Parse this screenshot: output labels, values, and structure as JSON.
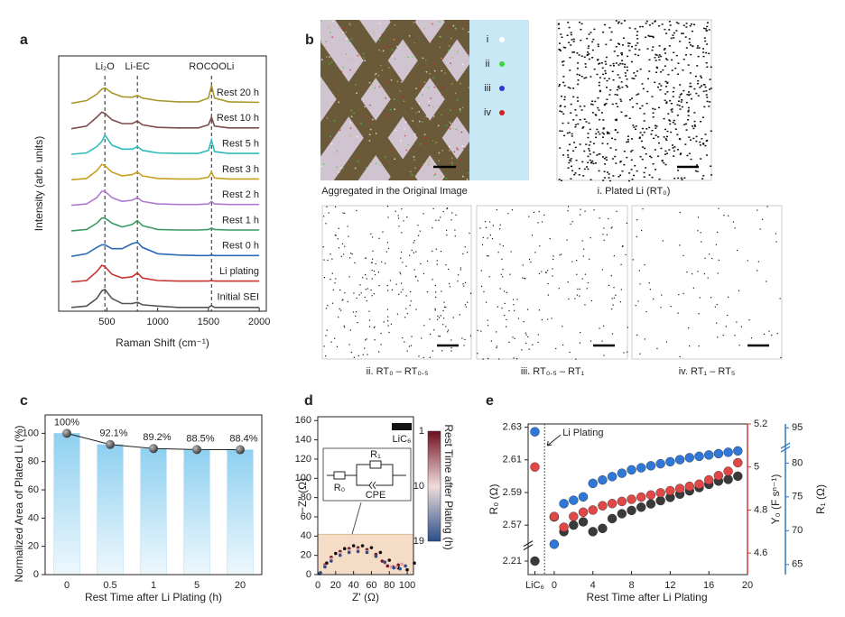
{
  "chart_data": [
    {
      "type": "line",
      "panel_label": "a",
      "xlabel": "Raman Shift (cm⁻¹)",
      "ylabel": "Intensity (arb. units)",
      "x": [
        150,
        300,
        400,
        450,
        480,
        550,
        650,
        750,
        800,
        850,
        1000,
        1200,
        1400,
        1500,
        1530,
        1560,
        1700,
        2000
      ],
      "xlim": [
        25,
        2070
      ],
      "xticks": [
        500,
        1000,
        1500,
        2000
      ],
      "ylim": [
        0,
        10
      ],
      "annotations": [
        {
          "text": "Li₂O",
          "x": 480
        },
        {
          "text": "Li-EC",
          "x": 800
        },
        {
          "text": "ROCOOLi",
          "x": 1530
        }
      ],
      "series": [
        {
          "name": "Rest 20 h",
          "color": "#a8982a",
          "values": [
            0.15,
            0.25,
            0.5,
            0.7,
            0.75,
            0.55,
            0.4,
            0.38,
            0.45,
            0.35,
            0.25,
            0.2,
            0.2,
            0.35,
            0.85,
            0.35,
            0.2,
            0.18
          ]
        },
        {
          "name": "Rest 10 h",
          "color": "#7a4c4a",
          "values": [
            0.15,
            0.25,
            0.6,
            0.8,
            0.75,
            0.5,
            0.35,
            0.35,
            0.45,
            0.3,
            0.2,
            0.18,
            0.18,
            0.3,
            0.6,
            0.25,
            0.18,
            0.18
          ]
        },
        {
          "name": "Rest 5 h",
          "color": "#2cbcbc",
          "values": [
            0.15,
            0.2,
            0.45,
            0.65,
            0.9,
            0.5,
            0.35,
            0.35,
            0.45,
            0.3,
            0.2,
            0.18,
            0.18,
            0.3,
            0.7,
            0.25,
            0.18,
            0.18
          ]
        },
        {
          "name": "Rest 3 h",
          "color": "#c9a022",
          "values": [
            0.15,
            0.2,
            0.5,
            0.75,
            0.7,
            0.45,
            0.3,
            0.35,
            0.45,
            0.3,
            0.2,
            0.18,
            0.18,
            0.25,
            0.45,
            0.22,
            0.18,
            0.18
          ]
        },
        {
          "name": "Rest 2 h",
          "color": "#b07ad0",
          "values": [
            0.15,
            0.2,
            0.45,
            0.7,
            0.7,
            0.45,
            0.3,
            0.35,
            0.45,
            0.3,
            0.2,
            0.18,
            0.18,
            0.2,
            0.3,
            0.2,
            0.18,
            0.18
          ]
        },
        {
          "name": "Rest 1 h",
          "color": "#3a9a62",
          "values": [
            0.15,
            0.2,
            0.45,
            0.65,
            0.65,
            0.45,
            0.3,
            0.4,
            0.55,
            0.35,
            0.2,
            0.18,
            0.18,
            0.2,
            0.25,
            0.2,
            0.18,
            0.18
          ]
        },
        {
          "name": "Rest 0 h",
          "color": "#2a6ab8",
          "values": [
            0.15,
            0.25,
            0.5,
            0.6,
            0.6,
            0.45,
            0.45,
            0.65,
            0.7,
            0.5,
            0.25,
            0.2,
            0.18,
            0.18,
            0.2,
            0.18,
            0.18,
            0.18
          ]
        },
        {
          "name": "Li plating",
          "color": "#c83232",
          "values": [
            0.15,
            0.2,
            0.55,
            0.8,
            0.75,
            0.45,
            0.3,
            0.35,
            0.5,
            0.3,
            0.2,
            0.18,
            0.18,
            0.18,
            0.2,
            0.18,
            0.18,
            0.18
          ]
        },
        {
          "name": "Initial SEI",
          "color": "#555555",
          "values": [
            0.15,
            0.2,
            0.5,
            0.8,
            0.85,
            0.5,
            0.3,
            0.3,
            0.35,
            0.25,
            0.2,
            0.15,
            0.15,
            0.15,
            0.22,
            0.15,
            0.15,
            0.15
          ]
        }
      ]
    },
    {
      "type": "bar",
      "panel_label": "c",
      "xlabel": "Rest Time after Li Plating (h)",
      "ylabel": "Normalized Area of Plated Li (%)",
      "categories": [
        "0",
        "0.5",
        "1",
        "5",
        "20"
      ],
      "values": [
        100,
        92.1,
        89.2,
        88.5,
        88.4
      ],
      "value_labels": [
        "100%",
        "92.1%",
        "89.2%",
        "88.5%",
        "88.4%"
      ],
      "color": "#a9dcf3",
      "ylim": [
        0,
        113
      ],
      "yticks": [
        0,
        20,
        40,
        60,
        80,
        100
      ]
    },
    {
      "type": "scatter",
      "panel_label": "d",
      "xlabel": "Z' (Ω)",
      "ylabel": "−Z'' (Ω)",
      "xlim": [
        0,
        107
      ],
      "xticks": [
        0,
        20,
        40,
        60,
        80,
        100
      ],
      "ylim": [
        0,
        164
      ],
      "yticks": [
        0,
        20,
        40,
        60,
        80,
        100,
        120,
        140,
        160
      ],
      "series": [
        {
          "color": "#111111",
          "x": [
            2,
            10,
            20,
            30,
            40,
            50,
            60,
            70,
            80,
            90,
            100,
            108
          ],
          "values": [
            1,
            12,
            22,
            27,
            30,
            30,
            28,
            23,
            15,
            7,
            5,
            12
          ]
        },
        {
          "color": "#7a1426",
          "x": [
            3,
            8,
            15,
            25,
            35,
            45,
            55,
            65,
            72,
            78,
            84,
            90
          ],
          "values": [
            2,
            10,
            18,
            24,
            27,
            28,
            26,
            21,
            14,
            9,
            8,
            10
          ]
        },
        {
          "color": "#d9a0a8",
          "x": [
            3,
            8,
            15,
            25,
            35,
            45,
            55,
            65,
            75,
            82,
            88,
            94
          ],
          "values": [
            2,
            9,
            16,
            22,
            25,
            26,
            24,
            19,
            12,
            8,
            8,
            11
          ]
        },
        {
          "color": "#2a4e8a",
          "x": [
            3,
            8,
            15,
            25,
            35,
            45,
            55,
            65,
            75,
            85,
            92,
            98
          ],
          "values": [
            2,
            8,
            14,
            20,
            23,
            24,
            23,
            19,
            13,
            7,
            6,
            9
          ]
        }
      ],
      "legend": {
        "label": "LiC₆",
        "color": "#111111"
      },
      "colorbar": {
        "title": "Rest Time after Plating (h)",
        "lim": [
          1,
          19
        ],
        "ticks": [
          1,
          10,
          19
        ],
        "colors": [
          "#6e0f1e",
          "#f0dcdc",
          "#2a4e8a"
        ]
      },
      "inset": {
        "labels": [
          "R₀",
          "R₁",
          "CPE"
        ]
      }
    },
    {
      "type": "multi_axis_scatter",
      "panel_label": "e",
      "xlabel": "Rest Time after Li Plating",
      "x": [
        -2,
        0,
        1,
        2,
        3,
        4,
        5,
        6,
        7,
        8,
        9,
        10,
        11,
        12,
        13,
        14,
        15,
        16,
        17,
        18,
        19
      ],
      "xlim": [
        -2.7,
        20
      ],
      "xticks": [
        {
          "value": -2,
          "label": "LiC₆"
        },
        0,
        4,
        8,
        12,
        16,
        20
      ],
      "ylabel": "R₀ (Ω)",
      "ylim": [
        2.2,
        2.632
      ],
      "ybreak": [
        2.22,
        2.56
      ],
      "yticks": [
        2.21,
        2.57,
        2.59,
        2.61,
        2.63
      ],
      "y2label": "Y₀ (F sⁿ⁻¹)",
      "y2lim": [
        4.5,
        5.2
      ],
      "y2ticks": [
        4.6,
        4.8,
        5.0,
        5.2
      ],
      "y2color": "#d63a3a",
      "y3label": "R₁ (Ω)",
      "y3lim": [
        63.5,
        95.5
      ],
      "y3break": [
        82,
        93
      ],
      "y3ticks": [
        65,
        70,
        75,
        80,
        95
      ],
      "y3color": "#2f78bd",
      "annotations": [
        {
          "text": "Li Plating",
          "x": -1
        }
      ],
      "series": [
        {
          "axis": "y",
          "color": "#3a3a3a",
          "values": [
            2.21,
            2.575,
            2.566,
            2.57,
            2.572,
            2.566,
            2.568,
            2.574,
            2.577,
            2.579,
            2.581,
            2.583,
            2.585,
            2.587,
            2.589,
            2.591,
            2.593,
            2.595,
            2.597,
            2.598,
            2.6
          ]
        },
        {
          "axis": "y2",
          "color": "#e04848",
          "values": [
            5.0,
            4.77,
            4.72,
            4.77,
            4.79,
            4.8,
            4.82,
            4.83,
            4.84,
            4.85,
            4.86,
            4.87,
            4.88,
            4.89,
            4.9,
            4.91,
            4.92,
            4.94,
            4.96,
            4.98,
            5.02
          ]
        },
        {
          "axis": "y3",
          "color": "#2f78d8",
          "values": [
            94.5,
            68,
            74,
            74.5,
            75,
            77,
            77.5,
            78,
            78.5,
            79,
            79.3,
            79.6,
            79.9,
            80.2,
            80.5,
            80.8,
            81,
            81.2,
            81.4,
            81.6,
            81.8
          ]
        }
      ]
    }
  ],
  "panel_b": {
    "panel_label": "b",
    "legend": [
      {
        "label": "i",
        "color": "#ffffff"
      },
      {
        "label": "ii",
        "color": "#3bd43b"
      },
      {
        "label": "iii",
        "color": "#2a3ad0"
      },
      {
        "label": "iv",
        "color": "#d42020"
      }
    ],
    "captions": [
      "Aggregated in the Original Image",
      "i. Plated Li (RT₀)",
      "ii. RT₀ – RT₀.₅",
      "iii. RT₀.₅ – RT₁",
      "iv. RT₁ – RT₅"
    ]
  }
}
